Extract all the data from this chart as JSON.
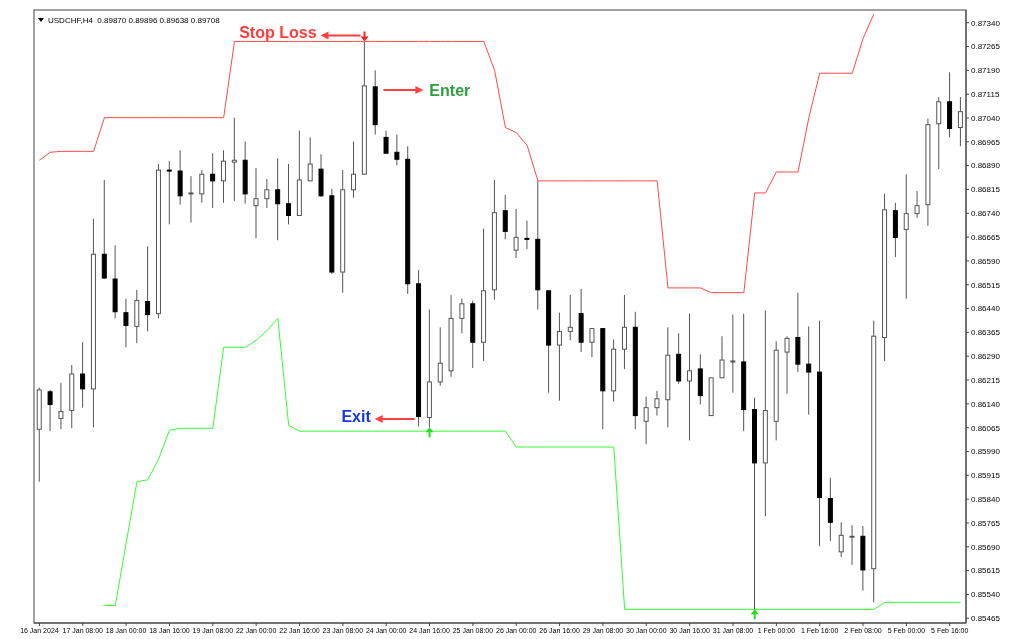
{
  "chart_data": {
    "type": "candlestick",
    "title": "USDCHF,H4  0.89870 0.89896 0.89638 0.89708",
    "categories": [
      "16 Jan 2024",
      null,
      null,
      null,
      "17 Jan 08:00",
      null,
      null,
      null,
      "18 Jan 00:00",
      null,
      null,
      null,
      "18 Jan 16:00",
      null,
      null,
      null,
      "19 Jan 08:00",
      null,
      null,
      null,
      "22 Jan 00:00",
      null,
      null,
      null,
      "22 Jan 16:00",
      null,
      null,
      null,
      "23 Jan 08:00",
      null,
      null,
      null,
      "24 Jan 00:00",
      null,
      null,
      null,
      "24 Jan 16:00",
      null,
      null,
      null,
      "25 Jan 08:00",
      null,
      null,
      null,
      "26 Jan 00:00",
      null,
      null,
      null,
      "26 Jan 16:00",
      null,
      null,
      null,
      "29 Jan 08:00",
      null,
      null,
      null,
      "30 Jan 00:00",
      null,
      null,
      null,
      "30 Jan 16:00",
      null,
      null,
      null,
      "31 Jan 08:00",
      null,
      null,
      null,
      "1 Feb 00:00",
      null,
      null,
      null,
      "1 Feb 16:00",
      null,
      null,
      null,
      "2 Feb 08:00",
      null,
      null,
      null,
      "5 Feb 00:00",
      null,
      null,
      null,
      "5 Feb 16:00",
      null
    ],
    "ohlc": [
      [
        0.8606,
        0.86191,
        0.85895,
        0.86184
      ],
      [
        0.86178,
        0.86184,
        0.86054,
        0.86138
      ],
      [
        0.86094,
        0.86206,
        0.8606,
        0.86116
      ],
      [
        0.86119,
        0.86262,
        0.86063,
        0.86234
      ],
      [
        0.86234,
        0.86334,
        0.86128,
        0.86187
      ],
      [
        0.86187,
        0.86723,
        0.86066,
        0.86611
      ],
      [
        0.86611,
        0.86845,
        0.86533,
        0.86536
      ],
      [
        0.86533,
        0.86639,
        0.86409,
        0.8643
      ],
      [
        0.86427,
        0.86471,
        0.86318,
        0.86387
      ],
      [
        0.86384,
        0.86499,
        0.86331,
        0.86465
      ],
      [
        0.86462,
        0.86636,
        0.86368,
        0.86421
      ],
      [
        0.86424,
        0.86895,
        0.86409,
        0.86876
      ],
      [
        0.86876,
        0.86904,
        0.86705,
        0.86873
      ],
      [
        0.86873,
        0.86938,
        0.86767,
        0.86795
      ],
      [
        0.86804,
        0.86857,
        0.86711,
        0.86804
      ],
      [
        0.86801,
        0.86876,
        0.86773,
        0.86863
      ],
      [
        0.86863,
        0.86929,
        0.86757,
        0.86842
      ],
      [
        0.86842,
        0.86938,
        0.86773,
        0.86904
      ],
      [
        0.86901,
        0.87041,
        0.86779,
        0.86907
      ],
      [
        0.86907,
        0.86966,
        0.8677,
        0.86801
      ],
      [
        0.86764,
        0.86882,
        0.86661,
        0.86786
      ],
      [
        0.86786,
        0.86848,
        0.86757,
        0.86814
      ],
      [
        0.86814,
        0.86913,
        0.86655,
        0.8677
      ],
      [
        0.8677,
        0.86895,
        0.86705,
        0.86733
      ],
      [
        0.86733,
        0.87,
        0.86733,
        0.86845
      ],
      [
        0.86842,
        0.86979,
        0.86842,
        0.86895
      ],
      [
        0.86879,
        0.86926,
        0.86792,
        0.86795
      ],
      [
        0.86795,
        0.86817,
        0.86549,
        0.86555
      ],
      [
        0.86555,
        0.86876,
        0.8649,
        0.86814
      ],
      [
        0.86814,
        0.86966,
        0.86789,
        0.86863
      ],
      [
        0.86863,
        0.87281,
        0.86863,
        0.87141
      ],
      [
        0.87138,
        0.8719,
        0.86988,
        0.87019
      ],
      [
        0.86979,
        0.87,
        0.86929,
        0.86929
      ],
      [
        0.86932,
        0.86988,
        0.86891,
        0.8691
      ],
      [
        0.8691,
        0.86951,
        0.86486,
        0.86518
      ],
      [
        0.86518,
        0.86561,
        0.86069,
        0.861
      ],
      [
        0.86097,
        0.86437,
        0.86066,
        0.86209
      ],
      [
        0.86209,
        0.86381,
        0.86197,
        0.86268
      ],
      [
        0.86244,
        0.86483,
        0.86225,
        0.86409
      ],
      [
        0.86409,
        0.86471,
        0.86362,
        0.86455
      ],
      [
        0.86455,
        0.86465,
        0.86253,
        0.86334
      ],
      [
        0.86334,
        0.86692,
        0.86275,
        0.86496
      ],
      [
        0.86499,
        0.86845,
        0.86468,
        0.86742
      ],
      [
        0.86748,
        0.86798,
        0.86658,
        0.86683
      ],
      [
        0.86624,
        0.86754,
        0.86599,
        0.86664
      ],
      [
        0.86661,
        0.86717,
        0.86627,
        0.86658
      ],
      [
        0.86658,
        0.86842,
        0.86437,
        0.86499
      ],
      [
        0.86496,
        0.86496,
        0.86175,
        0.86325
      ],
      [
        0.86325,
        0.86427,
        0.8615,
        0.86368
      ],
      [
        0.86368,
        0.86483,
        0.8634,
        0.86381
      ],
      [
        0.86424,
        0.86502,
        0.86303,
        0.86334
      ],
      [
        0.86334,
        0.86377,
        0.86287,
        0.86377
      ],
      [
        0.86377,
        0.86377,
        0.8606,
        0.86181
      ],
      [
        0.86181,
        0.86343,
        0.86147,
        0.86312
      ],
      [
        0.86312,
        0.86483,
        0.8625,
        0.86381
      ],
      [
        0.86381,
        0.8643,
        0.8606,
        0.86103
      ],
      [
        0.86085,
        0.86163,
        0.86013,
        0.86128
      ],
      [
        0.86128,
        0.86181,
        0.86103,
        0.86156
      ],
      [
        0.86153,
        0.86381,
        0.86066,
        0.86293
      ],
      [
        0.86296,
        0.86362,
        0.86203,
        0.86212
      ],
      [
        0.86212,
        0.86424,
        0.86025,
        0.86244
      ],
      [
        0.8625,
        0.86296,
        0.86138,
        0.86166
      ],
      [
        0.86103,
        0.86222,
        0.86103,
        0.86222
      ],
      [
        0.86222,
        0.86353,
        0.86222,
        0.86278
      ],
      [
        0.86275,
        0.86421,
        0.86175,
        0.86275
      ],
      [
        0.86272,
        0.86424,
        0.86054,
        0.86122
      ],
      [
        0.86122,
        0.86159,
        0.85493,
        0.85954
      ],
      [
        0.85954,
        0.86434,
        0.85786,
        0.86119
      ],
      [
        0.86085,
        0.86337,
        0.86025,
        0.86309
      ],
      [
        0.86303,
        0.86353,
        0.86172,
        0.86346
      ],
      [
        0.86349,
        0.8649,
        0.8624,
        0.86265
      ],
      [
        0.86265,
        0.86384,
        0.86106,
        0.8624
      ],
      [
        0.8624,
        0.86402,
        0.85692,
        0.85845
      ],
      [
        0.85842,
        0.85907,
        0.85708,
        0.85767
      ],
      [
        0.85674,
        0.85767,
        0.85658,
        0.85726
      ],
      [
        0.85723,
        0.85758,
        0.85633,
        0.85723
      ],
      [
        0.85723,
        0.85755,
        0.85552,
        0.85617
      ],
      [
        0.85621,
        0.86402,
        0.85515,
        0.86353
      ],
      [
        0.86349,
        0.86801,
        0.86275,
        0.86751
      ],
      [
        0.86748,
        0.86773,
        0.86602,
        0.86664
      ],
      [
        0.86689,
        0.86863,
        0.86471,
        0.86739
      ],
      [
        0.86739,
        0.8681,
        0.86726,
        0.86764
      ],
      [
        0.86767,
        0.87038,
        0.86701,
        0.87019
      ],
      [
        0.87022,
        0.87106,
        0.86879,
        0.87091
      ],
      [
        0.87091,
        0.87184,
        0.86979,
        0.87007
      ],
      [
        0.8701,
        0.87106,
        0.86951,
        0.8706
      ]
    ],
    "series": [
      {
        "type": "line",
        "color": "#ff4a4a",
        "values": [
          0.86907,
          0.86932,
          0.86935,
          0.86935,
          0.86935,
          0.86935,
          0.87041,
          0.87041,
          0.87041,
          0.87041,
          0.87041,
          0.87041,
          0.87041,
          0.87041,
          0.87041,
          0.87041,
          0.87041,
          0.87041,
          0.87281,
          0.87281,
          0.87281,
          0.87281,
          0.87281,
          0.87281,
          0.87281,
          0.87281,
          0.87281,
          0.87281,
          0.87281,
          0.87281,
          0.87281,
          0.87281,
          0.87281,
          0.87281,
          0.87281,
          0.87281,
          0.87281,
          0.87281,
          0.87281,
          0.87281,
          0.87281,
          0.87281,
          0.8719,
          0.8701,
          0.86994,
          0.86954,
          0.86842,
          0.86842,
          0.86842,
          0.86842,
          0.86842,
          0.86842,
          0.86842,
          0.86842,
          0.86842,
          0.86842,
          0.86842,
          0.86842,
          0.86505,
          0.86505,
          0.86505,
          0.86505,
          0.8649,
          0.8649,
          0.8649,
          0.8649,
          0.86804,
          0.86804,
          0.8687,
          0.8687,
          0.8687,
          0.87041,
          0.87181,
          0.87181,
          0.87181,
          0.87181,
          0.8729,
          0.87368,
          null,
          null,
          null,
          null,
          null,
          null,
          null,
          null
        ]
      },
      {
        "type": "line",
        "color": "#33ff33",
        "values": [
          null,
          null,
          null,
          null,
          null,
          null,
          0.85505,
          0.85505,
          0.85701,
          0.85895,
          0.85901,
          0.85966,
          0.86057,
          0.86063,
          0.86063,
          0.86063,
          0.86063,
          0.86318,
          0.86318,
          0.86318,
          0.8634,
          0.86371,
          0.86409,
          0.86072,
          0.86054,
          0.86054,
          0.86054,
          0.86054,
          0.86054,
          0.86054,
          0.86054,
          0.86054,
          0.86054,
          0.86054,
          0.86054,
          0.86054,
          0.86054,
          0.86054,
          0.86054,
          0.86054,
          0.86054,
          0.86054,
          0.86054,
          0.86054,
          0.86004,
          0.86004,
          0.86004,
          0.86004,
          0.86004,
          0.86004,
          0.86004,
          0.86004,
          0.86004,
          0.86004,
          0.85493,
          0.85493,
          0.85493,
          0.85493,
          0.85493,
          0.85493,
          0.85493,
          0.85493,
          0.85493,
          0.85493,
          0.85493,
          0.85493,
          0.85493,
          0.85493,
          0.85493,
          0.85493,
          0.85493,
          0.85493,
          0.85493,
          0.85493,
          0.85493,
          0.85493,
          0.85493,
          0.85493,
          0.85515,
          0.85515,
          0.85515,
          0.85515,
          0.85515,
          0.85515,
          0.85515,
          0.85515
        ]
      }
    ],
    "ylim": [
      0.8545,
      0.8738
    ],
    "yticks": [
      0.85465,
      {
        "value": 0.8554,
        "label": "0.85540"
      },
      0.85615,
      {
        "value": 0.8569,
        "label": "0.85690"
      },
      0.85765,
      {
        "value": 0.8584,
        "label": "0.85840"
      },
      0.85915,
      {
        "value": 0.8599,
        "label": "0.85990"
      },
      0.86065,
      {
        "value": 0.8614,
        "label": "0.86140"
      },
      0.86215,
      {
        "value": 0.8629,
        "label": "0.86290"
      },
      0.86365,
      {
        "value": 0.8644,
        "label": "0.86440"
      },
      0.86515,
      {
        "value": 0.8659,
        "label": "0.86590"
      },
      0.86665,
      {
        "value": 0.8674,
        "label": "0.86740"
      },
      0.86815,
      {
        "value": 0.8689,
        "label": "0.86890"
      },
      0.86965,
      {
        "value": 0.8704,
        "label": "0.87040"
      },
      0.87115,
      {
        "value": 0.8719,
        "label": "0.87190"
      },
      0.87265,
      {
        "value": 0.8734,
        "label": "0.87340"
      }
    ],
    "annotations": [
      {
        "text": "Stop Loss",
        "y": 0.87281
      },
      "Enter",
      "Exit"
    ]
  }
}
